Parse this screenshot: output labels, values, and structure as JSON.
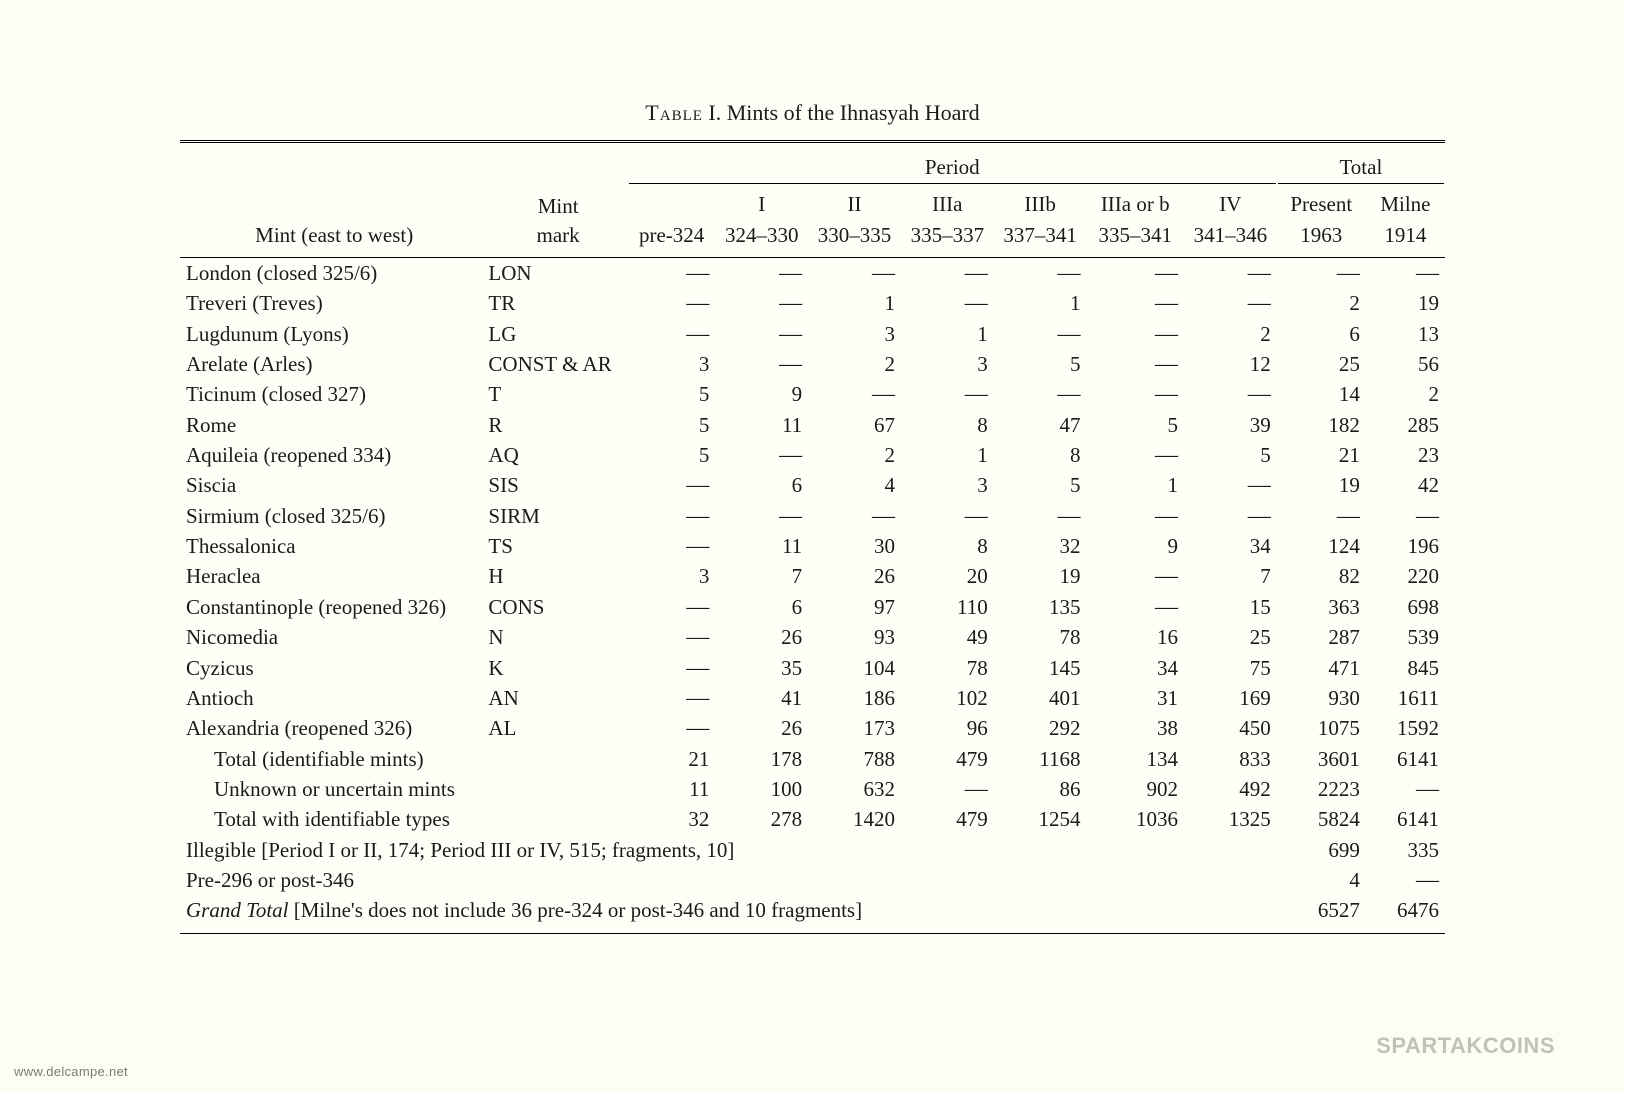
{
  "title_label": "Table",
  "title_rest": " I. Mints of the Ihnasyah Hoard",
  "dash": "—",
  "headers": {
    "period_label": "Period",
    "total_label": "Total",
    "mint_col": "Mint (east to west)",
    "mark_col": "Mint\nmark",
    "cols": [
      "",
      "I",
      "II",
      "IIIa",
      "IIIb",
      "IIIa or b",
      "IV",
      "Present",
      "Milne"
    ],
    "ranges": [
      "pre-324",
      "324–330",
      "330–335",
      "335–337",
      "337–341",
      "335–341",
      "341–346",
      "1963",
      "1914"
    ]
  },
  "rows": [
    {
      "mint": "London (closed 325/6)",
      "mark": "LON",
      "v": [
        "—",
        "—",
        "—",
        "—",
        "—",
        "—",
        "—",
        "—",
        "—"
      ]
    },
    {
      "mint": "Treveri (Treves)",
      "mark": "TR",
      "v": [
        "—",
        "—",
        "1",
        "—",
        "1",
        "—",
        "—",
        "2",
        "19"
      ]
    },
    {
      "mint": "Lugdunum (Lyons)",
      "mark": "LG",
      "v": [
        "—",
        "—",
        "3",
        "1",
        "—",
        "—",
        "2",
        "6",
        "13"
      ]
    },
    {
      "mint": "Arelate (Arles)",
      "mark": "CONST & AR",
      "v": [
        "3",
        "—",
        "2",
        "3",
        "5",
        "—",
        "12",
        "25",
        "56"
      ]
    },
    {
      "mint": "Ticinum (closed 327)",
      "mark": "T",
      "v": [
        "5",
        "9",
        "—",
        "—",
        "—",
        "—",
        "—",
        "14",
        "2"
      ]
    },
    {
      "mint": "Rome",
      "mark": "R",
      "v": [
        "5",
        "11",
        "67",
        "8",
        "47",
        "5",
        "39",
        "182",
        "285"
      ]
    },
    {
      "mint": "Aquileia (reopened 334)",
      "mark": "AQ",
      "v": [
        "5",
        "—",
        "2",
        "1",
        "8",
        "—",
        "5",
        "21",
        "23"
      ]
    },
    {
      "mint": "Siscia",
      "mark": "SIS",
      "v": [
        "—",
        "6",
        "4",
        "3",
        "5",
        "1",
        "—",
        "19",
        "42"
      ]
    },
    {
      "mint": "Sirmium (closed 325/6)",
      "mark": "SIRM",
      "v": [
        "—",
        "—",
        "—",
        "—",
        "—",
        "—",
        "—",
        "—",
        "—"
      ]
    },
    {
      "mint": "Thessalonica",
      "mark": "TS",
      "v": [
        "—",
        "11",
        "30",
        "8",
        "32",
        "9",
        "34",
        "124",
        "196"
      ]
    },
    {
      "mint": "Heraclea",
      "mark": "H",
      "v": [
        "3",
        "7",
        "26",
        "20",
        "19",
        "—",
        "7",
        "82",
        "220"
      ]
    },
    {
      "mint": "Constantinople (reopened 326)",
      "mark": "CONS",
      "v": [
        "—",
        "6",
        "97",
        "110",
        "135",
        "—",
        "15",
        "363",
        "698"
      ]
    },
    {
      "mint": "Nicomedia",
      "mark": "N",
      "v": [
        "—",
        "26",
        "93",
        "49",
        "78",
        "16",
        "25",
        "287",
        "539"
      ]
    },
    {
      "mint": "Cyzicus",
      "mark": "K",
      "v": [
        "—",
        "35",
        "104",
        "78",
        "145",
        "34",
        "75",
        "471",
        "845"
      ]
    },
    {
      "mint": "Antioch",
      "mark": "AN",
      "v": [
        "—",
        "41",
        "186",
        "102",
        "401",
        "31",
        "169",
        "930",
        "1611"
      ]
    },
    {
      "mint": "Alexandria (reopened 326)",
      "mark": "AL",
      "v": [
        "—",
        "26",
        "173",
        "96",
        "292",
        "38",
        "450",
        "1075",
        "1592"
      ]
    }
  ],
  "subtotals": [
    {
      "label": "Total (identifiable mints)",
      "v": [
        "21",
        "178",
        "788",
        "479",
        "1168",
        "134",
        "833",
        "3601",
        "6141"
      ]
    },
    {
      "label": "Unknown or uncertain mints",
      "v": [
        "11",
        "100",
        "632",
        "—",
        "86",
        "902",
        "492",
        "2223",
        "—"
      ]
    },
    {
      "label": "Total with identifiable types",
      "v": [
        "32",
        "278",
        "1420",
        "479",
        "1254",
        "1036",
        "1325",
        "5824",
        "6141"
      ]
    }
  ],
  "notes": [
    {
      "text": "Illegible [Period I or II, 174; Period III or IV, 515; fragments, 10]",
      "present": "699",
      "milne": "335"
    },
    {
      "text": "Pre-296 or post-346",
      "present": "4",
      "milne": "—"
    }
  ],
  "grand": {
    "label_ital": "Grand Total",
    "label_rest": " [Milne's does not include 36 pre-324 or post-346 and 10 fragments]",
    "present": "6527",
    "milne": "6476"
  },
  "footer_text": "www.delcampe.net",
  "brand_text": "SPARTAKCOINS"
}
